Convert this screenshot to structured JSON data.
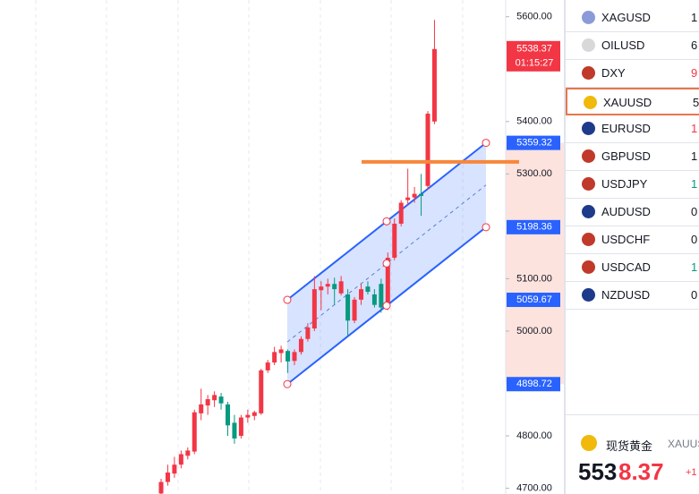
{
  "chart_data": {
    "type": "candlestick",
    "up_color": "#f23645",
    "down_color": "#089981",
    "open": [
      4690,
      4712,
      4728,
      4745,
      4762,
      4770,
      4843,
      4858,
      4868,
      4875,
      4860,
      4825,
      4800,
      4835,
      4838,
      4843,
      4925,
      4940,
      4958,
      4962,
      4943,
      4960,
      4985,
      5005,
      5078,
      5085,
      5090,
      5072,
      5070,
      5020,
      5060,
      5085,
      5070,
      5090,
      5045,
      5140,
      5205,
      5250,
      5255,
      5262,
      5277,
      5400
    ],
    "high": [
      4718,
      4745,
      4760,
      4772,
      4778,
      4850,
      4890,
      4878,
      4885,
      4882,
      4865,
      4840,
      4840,
      4850,
      4848,
      4928,
      4945,
      4970,
      4972,
      4965,
      4965,
      4990,
      5015,
      5105,
      5095,
      5100,
      5102,
      5105,
      5080,
      5065,
      5090,
      5095,
      5080,
      5100,
      5150,
      5215,
      5250,
      5310,
      5275,
      5300,
      5420,
      5594
    ],
    "low": [
      4680,
      4705,
      4720,
      4738,
      4755,
      4765,
      4830,
      4840,
      4855,
      4850,
      4800,
      4785,
      4795,
      4825,
      4830,
      4840,
      4920,
      4935,
      4940,
      4920,
      4935,
      4955,
      4980,
      5000,
      5040,
      5070,
      5050,
      5068,
      4990,
      5015,
      5050,
      5070,
      5045,
      5035,
      5040,
      5135,
      5200,
      5240,
      5245,
      5220,
      5270,
      5395
    ],
    "close": [
      4712,
      4730,
      4745,
      4765,
      4772,
      4845,
      4860,
      4870,
      4878,
      4862,
      4820,
      4795,
      4835,
      4840,
      4845,
      4925,
      4940,
      4960,
      4965,
      4942,
      4960,
      4985,
      5007,
      5080,
      5085,
      5090,
      5080,
      5095,
      5020,
      5060,
      5080,
      5075,
      5050,
      5045,
      5140,
      5205,
      5245,
      5255,
      5262,
      5258,
      5415,
      5538.37
    ],
    "ylim": [
      4689,
      5632
    ],
    "yticks": [
      {
        "value": 4700,
        "label": "4700.00"
      },
      {
        "value": 4800,
        "label": "4800.00"
      },
      {
        "value": 5000,
        "label": "5000.00"
      },
      {
        "value": 5100,
        "label": "5100.00"
      },
      {
        "value": 5300,
        "label": "5300.00"
      },
      {
        "value": 5400,
        "label": "5400.00"
      },
      {
        "value": 5600,
        "label": "5600.00"
      }
    ],
    "current_price": 5538.37,
    "countdown": "01:15:27",
    "channel": {
      "upper": [
        5059.67,
        5359.32
      ],
      "lower": [
        4898.72,
        5198.36
      ]
    },
    "horizontal_line": 5323
  },
  "watchlist": [
    {
      "symbol": "XAGUSD",
      "value": "1",
      "color": "#131722"
    },
    {
      "symbol": "OILUSD",
      "value": "6",
      "color": "#131722"
    },
    {
      "symbol": "DXY",
      "value": "9",
      "color": "#f23645"
    },
    {
      "symbol": "XAUUSD",
      "value": "5",
      "color": "#131722"
    },
    {
      "symbol": "EURUSD",
      "value": "1",
      "color": "#f23645"
    },
    {
      "symbol": "GBPUSD",
      "value": "1",
      "color": "#131722"
    },
    {
      "symbol": "USDJPY",
      "value": "1",
      "color": "#089981"
    },
    {
      "symbol": "AUDUSD",
      "value": "0",
      "color": "#131722"
    },
    {
      "symbol": "USDCHF",
      "value": "0",
      "color": "#131722"
    },
    {
      "symbol": "USDCAD",
      "value": "1",
      "color": "#089981"
    },
    {
      "symbol": "NZDUSD",
      "value": "0",
      "color": "#131722"
    }
  ],
  "detail": {
    "name": "现货黄金",
    "symbol": "XAUUS",
    "price_main": "553",
    "price_tail": "8.37",
    "change": "+1"
  }
}
